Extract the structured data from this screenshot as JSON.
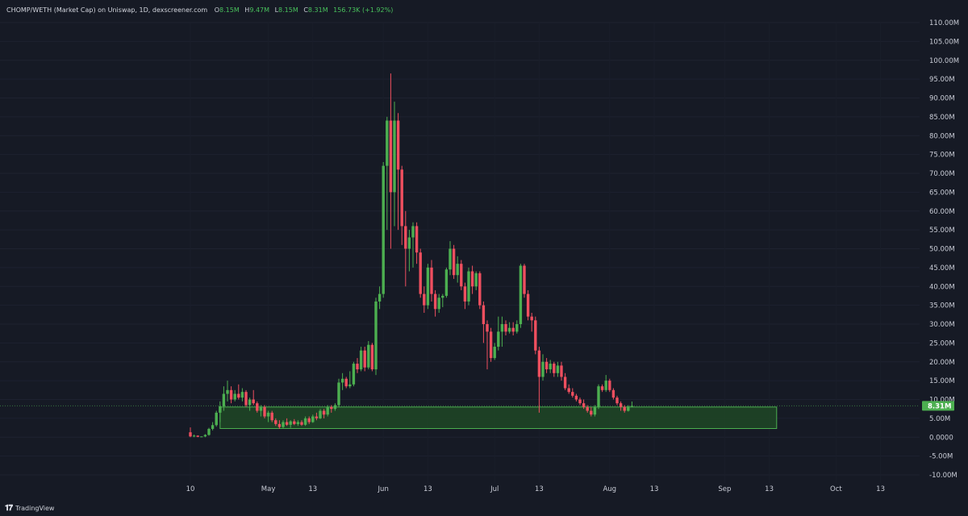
{
  "header": {
    "symbol": "CHOMP/WETH (Market Cap) on Uniswap, 1D, dexscreener.com",
    "open_label": "O",
    "open": "8.15M",
    "high_label": "H",
    "high": "9.47M",
    "low_label": "L",
    "low": "8.15M",
    "close_label": "C",
    "close": "8.31M",
    "change": "156.73K (+1.92%)"
  },
  "footer": {
    "brand": "TradingView",
    "logo_icon": "tradingview-logo-icon"
  },
  "colors": {
    "up": "#4caf50",
    "down": "#ef4f5f",
    "zone_fill": "#1f4a26",
    "zone_border": "#4caf50",
    "price_label_bg": "#4caf50"
  },
  "chart_data": {
    "type": "candlestick",
    "title": "CHOMP/WETH (Market Cap) on Uniswap, 1D, dexscreener.com",
    "y_unit": "M",
    "ylim": [
      -10,
      110
    ],
    "y_ticks": [
      "110.00M",
      "105.00M",
      "100.00M",
      "95.00M",
      "90.00M",
      "85.00M",
      "80.00M",
      "75.00M",
      "70.00M",
      "65.00M",
      "60.00M",
      "55.00M",
      "50.00M",
      "45.00M",
      "40.00M",
      "35.00M",
      "30.00M",
      "25.00M",
      "20.00M",
      "15.00M",
      "10.00M",
      "5.00M",
      "0.0000",
      "-5.00M",
      "-10.00M"
    ],
    "x_ticks": [
      "10",
      "May",
      "13",
      "Jun",
      "13",
      "Jul",
      "13",
      "Aug",
      "13",
      "Sep",
      "13",
      "Oct",
      "13"
    ],
    "first_date": "2024-04-10",
    "current_price_label": "8.31M",
    "current_price": 8.31,
    "support_zone": {
      "from_date": "2024-04-18",
      "to_date": "2024-09-15",
      "low": 2.3,
      "high": 8.0
    },
    "ohlc": [
      [
        1.3,
        2.6,
        0.0,
        0.2
      ],
      [
        0.2,
        0.7,
        0.0,
        0.4
      ],
      [
        0.4,
        0.5,
        0.0,
        0.1
      ],
      [
        0.1,
        0.2,
        0.0,
        0.2
      ],
      [
        0.2,
        0.8,
        0.0,
        0.6
      ],
      [
        0.6,
        2.5,
        0.4,
        2.2
      ],
      [
        2.2,
        4.0,
        1.8,
        3.2
      ],
      [
        3.2,
        7.0,
        2.8,
        6.5
      ],
      [
        6.5,
        9.5,
        4.0,
        8.2
      ],
      [
        8.2,
        13.5,
        7.0,
        11.5
      ],
      [
        11.5,
        15.0,
        9.5,
        12.5
      ],
      [
        12.5,
        13.5,
        9.0,
        10.0
      ],
      [
        10.0,
        12.5,
        9.5,
        11.5
      ],
      [
        11.5,
        14.0,
        10.0,
        10.5
      ],
      [
        10.5,
        13.0,
        9.5,
        12.0
      ],
      [
        12.0,
        12.5,
        8.0,
        8.5
      ],
      [
        8.5,
        10.5,
        7.0,
        10.0
      ],
      [
        10.0,
        12.5,
        8.5,
        9.0
      ],
      [
        9.0,
        9.5,
        6.5,
        7.0
      ],
      [
        7.0,
        8.5,
        5.5,
        8.0
      ],
      [
        8.0,
        8.5,
        5.0,
        5.5
      ],
      [
        5.5,
        7.0,
        4.0,
        6.5
      ],
      [
        6.5,
        7.0,
        4.0,
        4.5
      ],
      [
        4.5,
        5.0,
        3.0,
        3.5
      ],
      [
        3.5,
        4.5,
        2.2,
        2.7
      ],
      [
        2.7,
        4.5,
        2.3,
        4.0
      ],
      [
        4.0,
        5.0,
        3.0,
        3.3
      ],
      [
        3.3,
        4.5,
        2.5,
        4.2
      ],
      [
        4.2,
        4.8,
        3.2,
        3.5
      ],
      [
        3.5,
        4.5,
        3.0,
        4.0
      ],
      [
        4.0,
        4.5,
        3.0,
        3.3
      ],
      [
        3.3,
        5.5,
        3.0,
        5.0
      ],
      [
        5.0,
        5.5,
        3.5,
        4.0
      ],
      [
        4.0,
        6.0,
        3.8,
        5.5
      ],
      [
        5.5,
        6.5,
        4.5,
        5.0
      ],
      [
        5.0,
        7.5,
        4.8,
        7.0
      ],
      [
        7.0,
        7.5,
        5.0,
        6.0
      ],
      [
        6.0,
        8.5,
        5.5,
        8.0
      ],
      [
        8.0,
        8.5,
        6.5,
        7.5
      ],
      [
        7.5,
        9.0,
        7.0,
        8.5
      ],
      [
        8.5,
        15.5,
        8.0,
        14.5
      ],
      [
        14.5,
        17.0,
        12.5,
        15.5
      ],
      [
        15.5,
        16.0,
        13.0,
        13.5
      ],
      [
        13.5,
        17.5,
        13.0,
        14.0
      ],
      [
        14.0,
        20.0,
        13.5,
        19.5
      ],
      [
        19.5,
        21.0,
        17.0,
        18.0
      ],
      [
        18.0,
        24.0,
        17.5,
        23.0
      ],
      [
        23.0,
        24.0,
        17.5,
        18.5
      ],
      [
        18.5,
        25.5,
        18.0,
        24.5
      ],
      [
        24.5,
        25.0,
        17.5,
        18.0
      ],
      [
        18.0,
        37.0,
        16.5,
        36.0
      ],
      [
        36.0,
        40.0,
        34.0,
        38.0
      ],
      [
        38.0,
        73.0,
        37.0,
        72.0
      ],
      [
        72.0,
        85.0,
        55.0,
        84.0
      ],
      [
        84.0,
        96.5,
        50.0,
        65.0
      ],
      [
        65.0,
        89.0,
        56.0,
        84.0
      ],
      [
        84.0,
        86.0,
        55.0,
        71.0
      ],
      [
        71.0,
        72.0,
        51.0,
        56.0
      ],
      [
        56.0,
        60.0,
        40.0,
        50.0
      ],
      [
        50.0,
        55.0,
        44.0,
        53.0
      ],
      [
        53.0,
        57.0,
        45.0,
        56.0
      ],
      [
        56.0,
        57.0,
        46.0,
        49.0
      ],
      [
        49.0,
        50.0,
        37.0,
        38.0
      ],
      [
        38.0,
        40.0,
        33.0,
        35.0
      ],
      [
        35.0,
        46.0,
        34.0,
        45.0
      ],
      [
        45.0,
        47.0,
        36.0,
        38.0
      ],
      [
        38.0,
        39.0,
        32.0,
        34.0
      ],
      [
        34.0,
        38.0,
        33.0,
        37.0
      ],
      [
        37.0,
        38.0,
        34.5,
        37.5
      ],
      [
        37.5,
        45.0,
        37.0,
        44.5
      ],
      [
        44.5,
        52.0,
        43.0,
        50.0
      ],
      [
        50.0,
        51.0,
        42.0,
        43.0
      ],
      [
        43.0,
        48.0,
        41.0,
        46.0
      ],
      [
        46.0,
        47.0,
        39.0,
        40.0
      ],
      [
        40.0,
        41.0,
        34.0,
        36.0
      ],
      [
        36.0,
        45.0,
        35.0,
        44.0
      ],
      [
        44.0,
        45.5,
        38.0,
        40.0
      ],
      [
        40.0,
        44.0,
        39.0,
        43.5
      ],
      [
        43.5,
        44.0,
        34.0,
        35.0
      ],
      [
        35.0,
        36.0,
        25.0,
        30.0
      ],
      [
        30.0,
        31.0,
        18.0,
        28.0
      ],
      [
        28.0,
        29.0,
        20.0,
        21.0
      ],
      [
        21.0,
        25.0,
        20.5,
        24.0
      ],
      [
        24.0,
        32.0,
        23.0,
        28.0
      ],
      [
        28.0,
        32.0,
        24.0,
        30.0
      ],
      [
        30.0,
        31.0,
        27.0,
        28.0
      ],
      [
        28.0,
        30.5,
        27.5,
        29.0
      ],
      [
        29.0,
        30.5,
        27.0,
        28.0
      ],
      [
        28.0,
        31.0,
        27.5,
        30.0
      ],
      [
        30.0,
        46.0,
        29.0,
        45.5
      ],
      [
        45.5,
        46.0,
        37.0,
        38.0
      ],
      [
        38.0,
        39.0,
        31.0,
        32.0
      ],
      [
        32.0,
        33.0,
        28.0,
        31.0
      ],
      [
        31.0,
        32.0,
        22.0,
        23.0
      ],
      [
        23.0,
        24.0,
        6.5,
        16.0
      ],
      [
        16.0,
        22.0,
        15.0,
        20.0
      ],
      [
        20.0,
        21.0,
        17.0,
        18.0
      ],
      [
        18.0,
        20.5,
        17.0,
        19.5
      ],
      [
        19.5,
        20.0,
        16.0,
        17.0
      ],
      [
        17.0,
        20.0,
        16.0,
        19.0
      ],
      [
        19.0,
        20.0,
        15.0,
        16.0
      ],
      [
        16.0,
        17.0,
        12.5,
        13.0
      ],
      [
        13.0,
        14.0,
        11.5,
        12.0
      ],
      [
        12.0,
        13.0,
        10.5,
        11.0
      ],
      [
        11.0,
        11.5,
        9.5,
        10.0
      ],
      [
        10.0,
        10.5,
        8.5,
        9.0
      ],
      [
        9.0,
        10.0,
        7.5,
        8.0
      ],
      [
        8.0,
        8.5,
        6.5,
        7.0
      ],
      [
        7.0,
        8.0,
        5.5,
        6.0
      ],
      [
        6.0,
        8.5,
        5.5,
        8.0
      ],
      [
        8.0,
        14.0,
        7.5,
        13.5
      ],
      [
        13.5,
        14.0,
        12.0,
        12.5
      ],
      [
        12.5,
        16.5,
        12.0,
        15.0
      ],
      [
        15.0,
        15.5,
        12.0,
        12.5
      ],
      [
        12.5,
        13.0,
        10.0,
        10.5
      ],
      [
        10.5,
        11.0,
        8.5,
        9.0
      ],
      [
        9.0,
        9.5,
        7.0,
        8.0
      ],
      [
        8.0,
        8.5,
        6.5,
        7.0
      ],
      [
        7.0,
        8.5,
        6.8,
        8.15
      ],
      [
        8.15,
        9.47,
        8.15,
        8.31
      ]
    ]
  }
}
